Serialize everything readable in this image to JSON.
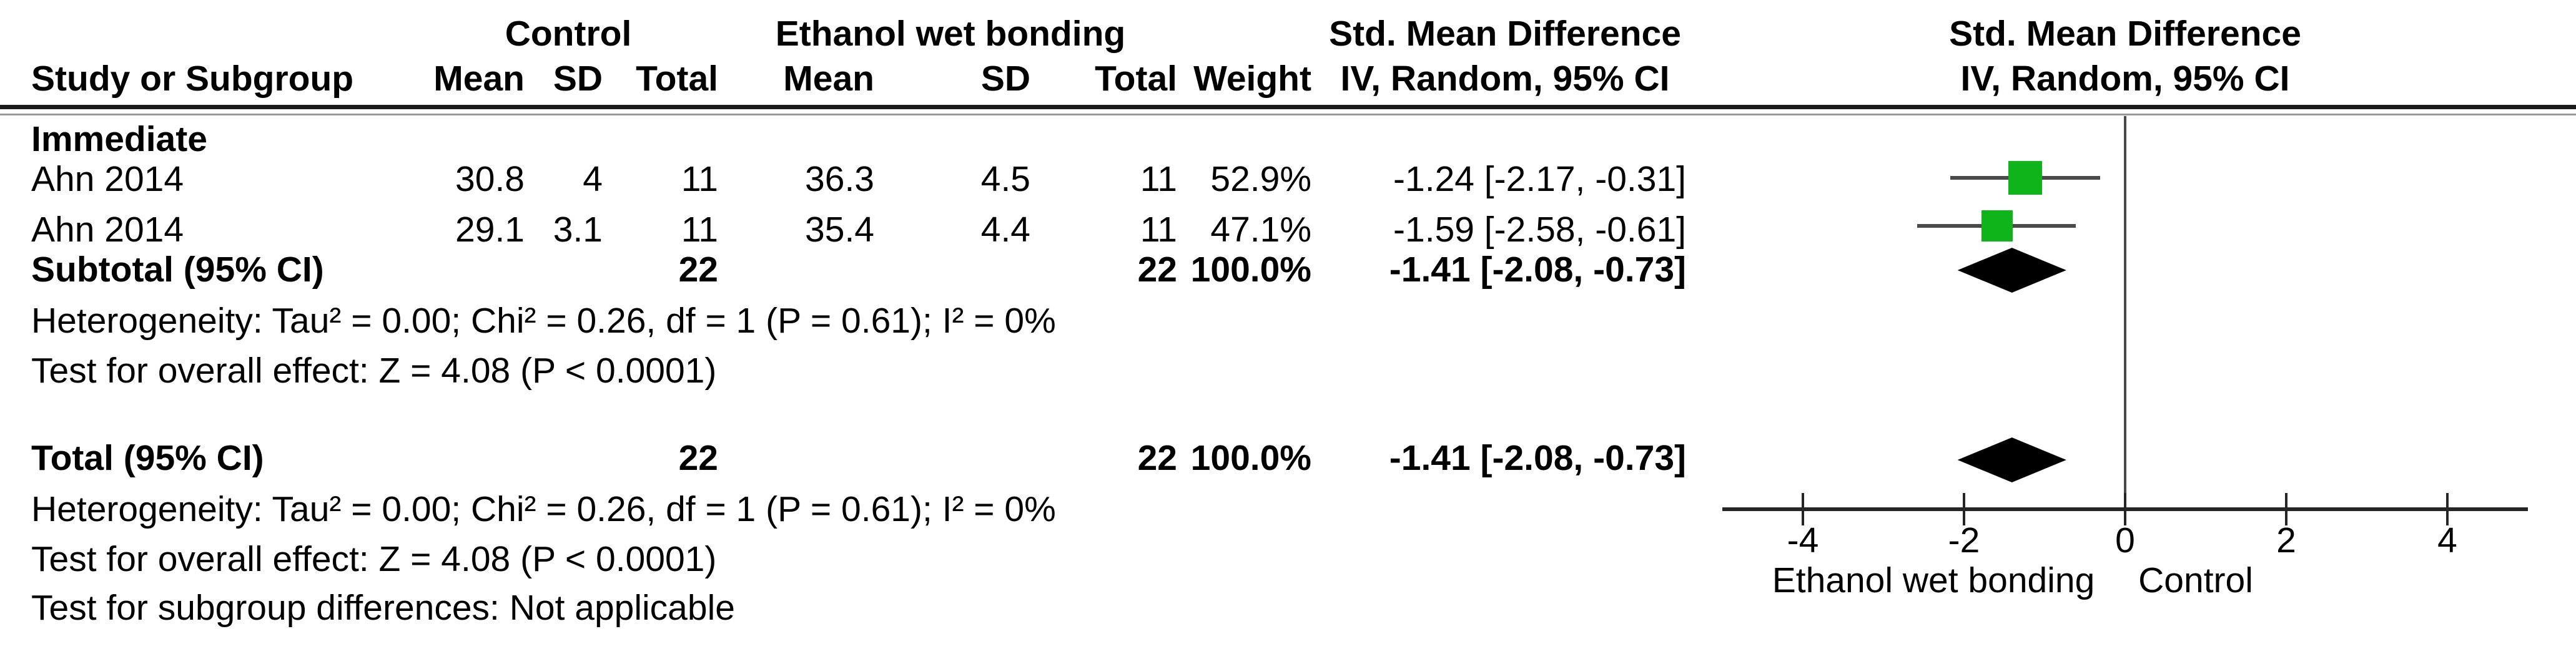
{
  "header": {
    "group_control": "Control",
    "group_experimental": "Ethanol wet bonding",
    "smd_col_title": "Std. Mean Difference",
    "smd_plot_title": "Std. Mean Difference",
    "method_col": "IV, Random, 95% CI",
    "method_plot": "IV, Random, 95% CI",
    "study": "Study or Subgroup",
    "mean1": "Mean",
    "sd1": "SD",
    "total1": "Total",
    "mean2": "Mean",
    "sd2": "SD",
    "total2": "Total",
    "weight": "Weight"
  },
  "subgroup": {
    "label": "Immediate"
  },
  "rows": [
    {
      "study": "Ahn 2014",
      "c_mean": "30.8",
      "c_sd": "4",
      "c_total": "11",
      "e_mean": "36.3",
      "e_sd": "4.5",
      "e_total": "11",
      "weight": "52.9%",
      "smd_text": "-1.24 [-2.17, -0.31]"
    },
    {
      "study": "Ahn 2014",
      "c_mean": "29.1",
      "c_sd": "3.1",
      "c_total": "11",
      "e_mean": "35.4",
      "e_sd": "4.4",
      "e_total": "11",
      "weight": "47.1%",
      "smd_text": "-1.59 [-2.58, -0.61]"
    }
  ],
  "subtotal": {
    "label": "Subtotal (95% CI)",
    "c_total": "22",
    "e_total": "22",
    "weight": "100.0%",
    "smd_text": "-1.41 [-2.08, -0.73]"
  },
  "subgroup_stats": {
    "heterogeneity": "Heterogeneity: Tau² = 0.00; Chi² = 0.26, df = 1 (P = 0.61); I² = 0%",
    "overall_effect": "Test for overall effect: Z = 4.08 (P < 0.0001)"
  },
  "total": {
    "label": "Total (95% CI)",
    "c_total": "22",
    "e_total": "22",
    "weight": "100.0%",
    "smd_text": "-1.41 [-2.08, -0.73]"
  },
  "total_stats": {
    "heterogeneity": "Heterogeneity: Tau² = 0.00; Chi² = 0.26, df = 1 (P = 0.61); I² = 0%",
    "overall_effect": "Test for overall effect: Z = 4.08 (P < 0.0001)",
    "subgroup_diff": "Test for subgroup differences: Not applicable"
  },
  "axis": {
    "tick_labels": [
      "-4",
      "-2",
      "0",
      "2",
      "4"
    ],
    "left_label": "Ethanol wet bonding",
    "right_label": "Control"
  },
  "colors": {
    "square_green": "#0FB41B",
    "diamond_black": "#000000",
    "ci_line": "#4a4a4a",
    "axis_line": "#262626"
  },
  "chart_data": {
    "type": "scatter",
    "variant": "forest-plot",
    "title": "Std. Mean Difference  IV, Random, 95% CI",
    "x_axis": {
      "range": [
        -5,
        5
      ],
      "ticks": [
        -4,
        -2,
        0,
        2,
        4
      ],
      "zero_reference_line": 0,
      "left_direction_label": "Ethanol wet bonding",
      "right_direction_label": "Control"
    },
    "subgroup": "Immediate",
    "series": [
      {
        "name": "Ahn 2014",
        "smd": -1.24,
        "ci": [
          -2.17,
          -0.31
        ],
        "weight_pct": 52.9,
        "control": {
          "mean": 30.8,
          "sd": 4,
          "total": 11
        },
        "ethanol_wet_bonding": {
          "mean": 36.3,
          "sd": 4.5,
          "total": 11
        }
      },
      {
        "name": "Ahn 2014",
        "smd": -1.59,
        "ci": [
          -2.58,
          -0.61
        ],
        "weight_pct": 47.1,
        "control": {
          "mean": 29.1,
          "sd": 3.1,
          "total": 11
        },
        "ethanol_wet_bonding": {
          "mean": 35.4,
          "sd": 4.4,
          "total": 11
        }
      },
      {
        "name": "Subtotal (95% CI)",
        "smd": -1.41,
        "ci": [
          -2.08,
          -0.73
        ],
        "weight_pct": 100.0,
        "control": {
          "total": 22
        },
        "ethanol_wet_bonding": {
          "total": 22
        },
        "marker": "diamond"
      },
      {
        "name": "Total (95% CI)",
        "smd": -1.41,
        "ci": [
          -2.08,
          -0.73
        ],
        "weight_pct": 100.0,
        "control": {
          "total": 22
        },
        "ethanol_wet_bonding": {
          "total": 22
        },
        "marker": "diamond"
      }
    ],
    "heterogeneity": {
      "tau2": 0.0,
      "chi2": 0.26,
      "df": 1,
      "p": 0.61,
      "i2_pct": 0
    },
    "overall_effect": {
      "z": 4.08,
      "p": "< 0.0001"
    },
    "legend_position": "none",
    "grid": false
  }
}
